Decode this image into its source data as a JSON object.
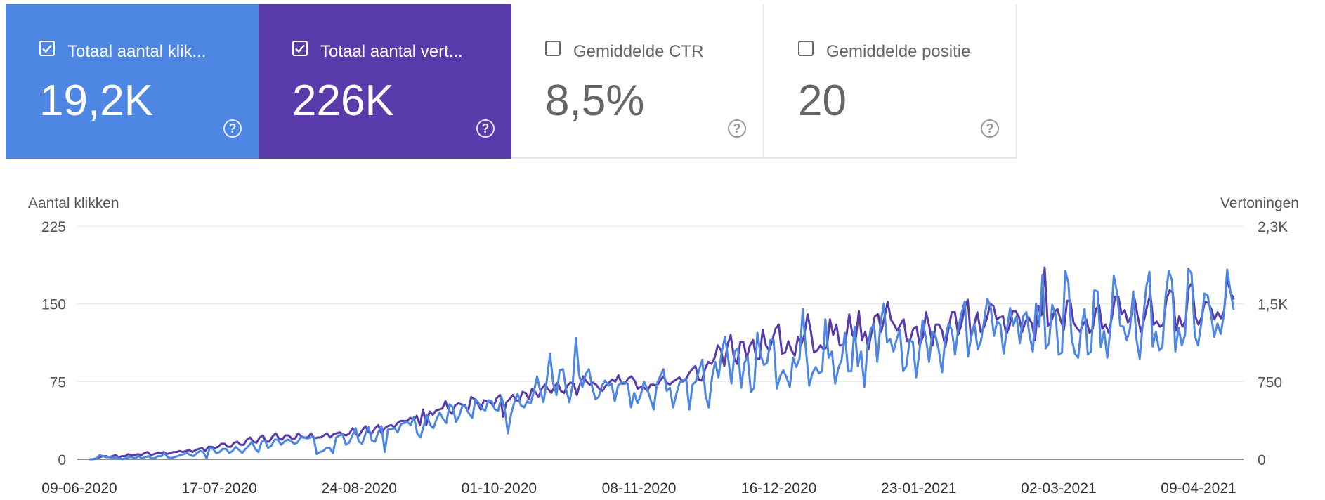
{
  "colors": {
    "clicks": "#4e86e4",
    "impressions": "#5a3bac",
    "grid": "#e6e6e6",
    "axis": "#666666"
  },
  "cards": [
    {
      "label": "Totaal aantal klik...",
      "value": "19,2K",
      "checked": true,
      "help_icon": "question-circle-icon"
    },
    {
      "label": "Totaal aantal vert...",
      "value": "226K",
      "checked": true,
      "help_icon": "question-circle-icon"
    },
    {
      "label": "Gemiddelde CTR",
      "value": "8,5%",
      "checked": false,
      "help_icon": "question-circle-icon"
    },
    {
      "label": "Gemiddelde positie",
      "value": "20",
      "checked": false,
      "help_icon": "question-circle-icon"
    }
  ],
  "chart_data": {
    "type": "line",
    "ylabel_left": "Aantal klikken",
    "ylabel_right": "Vertoningen",
    "left_ticks": [
      "225",
      "150",
      "75",
      "0"
    ],
    "right_ticks": [
      "2,3K",
      "1,5K",
      "750",
      "0"
    ],
    "ylim_left": [
      0,
      225
    ],
    "ylim_right": [
      0,
      2250
    ],
    "x_tick_labels": [
      "09-06-2020",
      "17-07-2020",
      "24-08-2020",
      "01-10-2020",
      "08-11-2020",
      "16-12-2020",
      "23-01-2021",
      "02-03-2021",
      "09-04-2021"
    ],
    "x_range": [
      "2020-06-09",
      "2021-04-12"
    ],
    "grid": true,
    "series": [
      {
        "name": "Totaal aantal klikken",
        "axis": "left",
        "color": "#4e86e4",
        "values": [
          0,
          0,
          1,
          4,
          3,
          2,
          2,
          1,
          2,
          1,
          0,
          1,
          2,
          2,
          1,
          3,
          1,
          2,
          3,
          1,
          1,
          3,
          3,
          6,
          2,
          1,
          2,
          3,
          4,
          5,
          6,
          4,
          3,
          6,
          8,
          7,
          1,
          11,
          10,
          6,
          7,
          10,
          10,
          6,
          8,
          12,
          9,
          6,
          10,
          13,
          17,
          10,
          7,
          17,
          18,
          11,
          13,
          19,
          19,
          14,
          17,
          19,
          18,
          15,
          16,
          21,
          21,
          20,
          21,
          22,
          5,
          7,
          8,
          11,
          11,
          6,
          21,
          23,
          24,
          14,
          16,
          23,
          30,
          17,
          15,
          24,
          31,
          18,
          17,
          26,
          32,
          7,
          29,
          29,
          30,
          26,
          34,
          35,
          36,
          33,
          41,
          25,
          21,
          32,
          43,
          33,
          30,
          39,
          45,
          39,
          35,
          53,
          50,
          36,
          42,
          52,
          51,
          44,
          40,
          58,
          54,
          49,
          47,
          57,
          56,
          48,
          47,
          60,
          49,
          25,
          44,
          55,
          63,
          52,
          50,
          56,
          54,
          65,
          80,
          66,
          55,
          76,
          102,
          73,
          62,
          86,
          87,
          67,
          55,
          72,
          117,
          81,
          70,
          82,
          87,
          70,
          58,
          60,
          71,
          76,
          71,
          73,
          56,
          71,
          74,
          74,
          73,
          50,
          64,
          54,
          62,
          75,
          68,
          58,
          48,
          73,
          80,
          87,
          66,
          69,
          50,
          63,
          74,
          76,
          78,
          48,
          72,
          75,
          86,
          96,
          62,
          50,
          79,
          94,
          79,
          104,
          118,
          97,
          73,
          104,
          107,
          69,
          93,
          99,
          65,
          69,
          122,
          101,
          91,
          93,
          115,
          115,
          68,
          80,
          86,
          79,
          70,
          98,
          89,
          97,
          145,
          105,
          71,
          83,
          89,
          83,
          85,
          135,
          98,
          104,
          73,
          88,
          96,
          122,
          85,
          85,
          128,
          90,
          104,
          70,
          108,
          126,
          130,
          94,
          131,
          150,
          113,
          116,
          104,
          116,
          125,
          85,
          90,
          115,
          113,
          79,
          104,
          134,
          117,
          94,
          123,
          119,
          105,
          84,
          117,
          131,
          125,
          101,
          126,
          141,
          152,
          99,
          119,
          130,
          106,
          114,
          134,
          155,
          147,
          119,
          133,
          130,
          102,
          125,
          146,
          129,
          138,
          112,
          138,
          142,
          120,
          104,
          150,
          128,
          178,
          107,
          112,
          149,
          140,
          101,
          103,
          182,
          170,
          117,
          102,
          98,
          128,
          145,
          101,
          104,
          163,
          162,
          108,
          124,
          98,
          127,
          177,
          161,
          129,
          128,
          115,
          126,
          162,
          116,
          97,
          133,
          166,
          181,
          109,
          123,
          105,
          108,
          158,
          182,
          172,
          104,
          127,
          110,
          120,
          184,
          179,
          119,
          110,
          131,
          160,
          158,
          140,
          118,
          131,
          121,
          140,
          183,
          162,
          145
        ]
      },
      {
        "name": "Totaal aantal vertoningen",
        "axis": "right",
        "color": "#5a3bac",
        "values": [
          0,
          0,
          10,
          20,
          30,
          30,
          20,
          30,
          40,
          20,
          30,
          30,
          50,
          40,
          40,
          50,
          40,
          60,
          70,
          40,
          50,
          60,
          60,
          70,
          50,
          60,
          70,
          70,
          80,
          70,
          80,
          90,
          70,
          90,
          100,
          110,
          80,
          120,
          120,
          110,
          120,
          150,
          150,
          120,
          120,
          160,
          170,
          140,
          140,
          190,
          210,
          170,
          160,
          210,
          230,
          170,
          170,
          220,
          250,
          200,
          190,
          230,
          230,
          200,
          200,
          250,
          220,
          210,
          210,
          250,
          200,
          210,
          210,
          230,
          250,
          210,
          240,
          250,
          260,
          240,
          230,
          250,
          300,
          240,
          230,
          280,
          320,
          260,
          250,
          300,
          330,
          250,
          300,
          320,
          330,
          310,
          350,
          370,
          370,
          370,
          400,
          380,
          420,
          330,
          480,
          330,
          460,
          430,
          470,
          480,
          490,
          560,
          470,
          440,
          520,
          540,
          530,
          520,
          460,
          600,
          580,
          540,
          480,
          570,
          560,
          550,
          510,
          590,
          620,
          410,
          550,
          580,
          620,
          570,
          560,
          650,
          640,
          580,
          680,
          650,
          600,
          680,
          720,
          680,
          640,
          700,
          740,
          660,
          640,
          710,
          740,
          730,
          620,
          730,
          800,
          750,
          720,
          740,
          720,
          680,
          660,
          710,
          740,
          770,
          750,
          810,
          730,
          730,
          780,
          800,
          760,
          680,
          700,
          690,
          660,
          720,
          720,
          710,
          760,
          800,
          740,
          720,
          750,
          770,
          790,
          750,
          770,
          830,
          870,
          900,
          770,
          760,
          870,
          940,
          920,
          980,
          1100,
          1050,
          900,
          1100,
          1200,
          980,
          920,
          1130,
          1130,
          970,
          1100,
          1150,
          970,
          970,
          1250,
          1100,
          1050,
          1150,
          1260,
          1300,
          1020,
          1030,
          1140,
          1050,
          1000,
          1180,
          1100,
          1200,
          1400,
          1240,
          1030,
          1050,
          1100,
          1060,
          1080,
          1350,
          1200,
          1300,
          1100,
          1100,
          1160,
          1400,
          1200,
          1150,
          1430,
          1150,
          1230,
          1060,
          1230,
          1380,
          1400,
          1230,
          1370,
          1520,
          1350,
          1300,
          1240,
          1300,
          1350,
          1140,
          1150,
          1260,
          1280,
          1100,
          1180,
          1420,
          1280,
          1100,
          1300,
          1300,
          1240,
          1080,
          1260,
          1420,
          1420,
          1200,
          1300,
          1460,
          1540,
          1170,
          1300,
          1420,
          1230,
          1270,
          1360,
          1500,
          1480,
          1350,
          1370,
          1380,
          1200,
          1280,
          1430,
          1430,
          1370,
          1230,
          1330,
          1370,
          1310,
          1150,
          1480,
          1390,
          1850,
          1290,
          1320,
          1420,
          1450,
          1340,
          1250,
          1530,
          1530,
          1320,
          1270,
          1230,
          1300,
          1350,
          1220,
          1260,
          1450,
          1490,
          1260,
          1300,
          1220,
          1370,
          1570,
          1570,
          1400,
          1440,
          1320,
          1380,
          1560,
          1390,
          1230,
          1340,
          1480,
          1600,
          1300,
          1330,
          1280,
          1300,
          1540,
          1630,
          1610,
          1240,
          1380,
          1280,
          1340,
          1660,
          1700,
          1380,
          1300,
          1370,
          1520,
          1510,
          1450,
          1350,
          1420,
          1360,
          1430,
          1750,
          1610,
          1550
        ]
      }
    ]
  }
}
